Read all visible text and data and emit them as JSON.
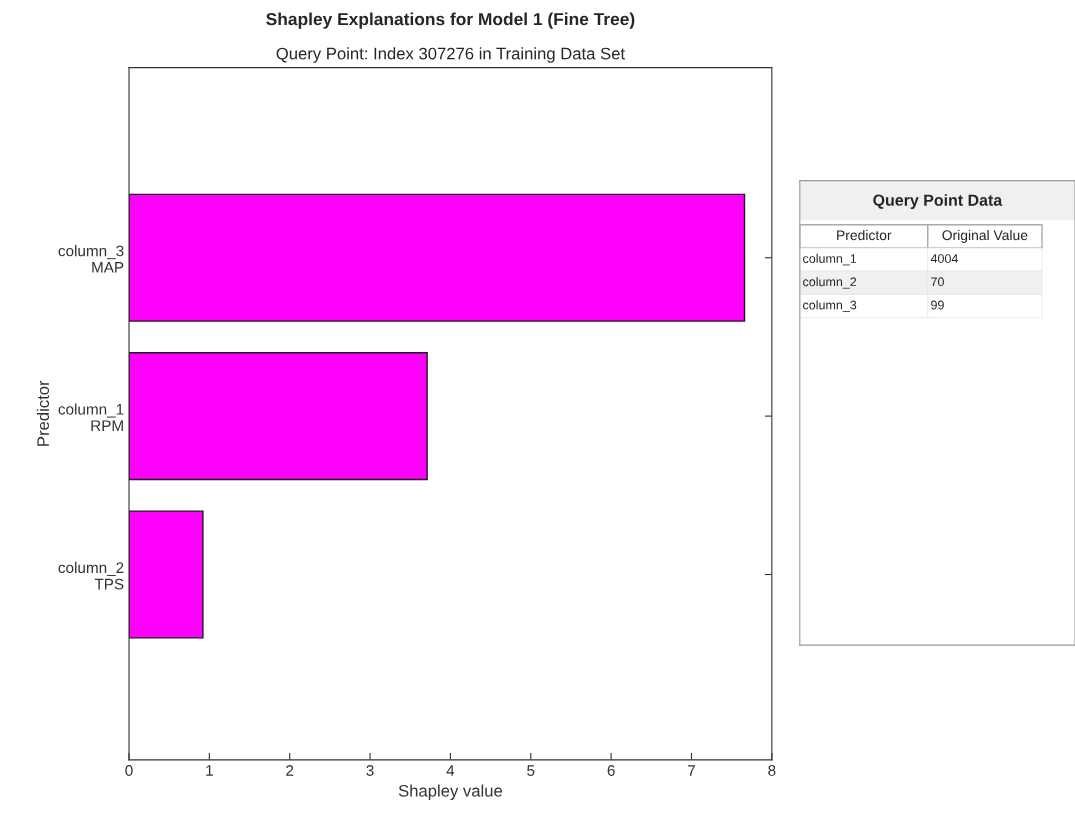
{
  "chart_data": [
    {
      "type": "bar",
      "orientation": "horizontal",
      "title": "Shapley Explanations for Model 1 (Fine Tree)",
      "subtitle": "Query Point: Index 307276 in Training Data Set",
      "xlabel": "Shapley value",
      "ylabel": "Predictor",
      "categories": [
        "column_3\nMAP",
        "column_1\nRPM",
        "column_2\nTPS"
      ],
      "values": [
        7.66,
        3.71,
        0.92
      ],
      "color": "#ff00ff",
      "xlim": [
        0,
        8
      ],
      "xticks": [
        0,
        1,
        2,
        3,
        4,
        5,
        6,
        7,
        8
      ],
      "grid": false,
      "legend": false
    },
    {
      "type": "other",
      "title": "Query Point Data",
      "categories": [
        "Predictor",
        "Original Value"
      ],
      "annotations": [
        "column_1",
        "4004",
        "column_2",
        "70",
        "column_3",
        "99"
      ]
    }
  ]
}
